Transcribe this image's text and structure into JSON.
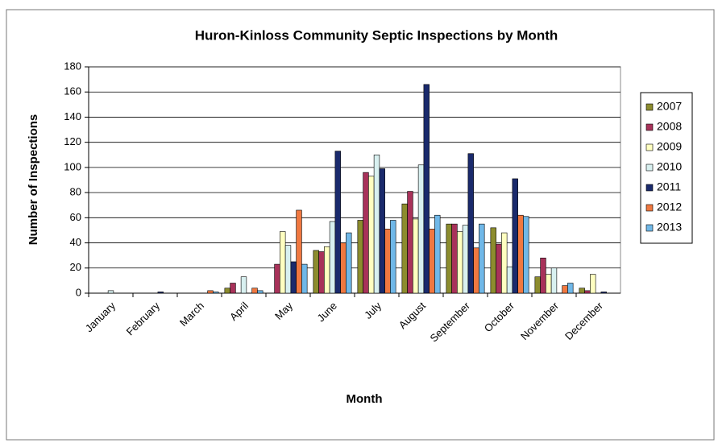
{
  "chart_data": {
    "type": "bar",
    "title": "Huron-Kinloss Community Septic Inspections by Month",
    "x_label": "Month",
    "y_label": "Number of Inspections",
    "categories": [
      "January",
      "February",
      "March",
      "April",
      "May",
      "June",
      "July",
      "August",
      "September",
      "October",
      "November",
      "December"
    ],
    "series": [
      {
        "name": "2007",
        "color": "#8c8c2e",
        "values": [
          0,
          0,
          0,
          4,
          0,
          34,
          58,
          71,
          55,
          52,
          13,
          4
        ]
      },
      {
        "name": "2008",
        "color": "#a8325a",
        "values": [
          0,
          0,
          0,
          8,
          23,
          33,
          96,
          81,
          55,
          39,
          28,
          2
        ]
      },
      {
        "name": "2009",
        "color": "#ffffc0",
        "values": [
          0,
          0,
          0,
          0,
          49,
          37,
          93,
          59,
          49,
          48,
          15,
          15
        ]
      },
      {
        "name": "2010",
        "color": "#d8f0f0",
        "values": [
          2,
          0,
          0,
          13,
          38,
          57,
          110,
          102,
          54,
          21,
          20,
          0
        ]
      },
      {
        "name": "2011",
        "color": "#1a2a6c",
        "values": [
          0,
          1,
          0,
          0,
          25,
          113,
          99,
          166,
          111,
          91,
          0,
          1
        ]
      },
      {
        "name": "2012",
        "color": "#f07840",
        "values": [
          0,
          0,
          2,
          4,
          66,
          40,
          51,
          51,
          36,
          62,
          6,
          0
        ]
      },
      {
        "name": "2013",
        "color": "#70b8e8",
        "values": [
          0,
          0,
          1,
          2,
          23,
          48,
          58,
          62,
          55,
          61,
          8,
          0
        ]
      }
    ],
    "ylim": [
      0,
      180
    ],
    "yticks": [
      0,
      20,
      40,
      60,
      80,
      100,
      120,
      140,
      160,
      180
    ],
    "grid": true,
    "legend": "right"
  }
}
